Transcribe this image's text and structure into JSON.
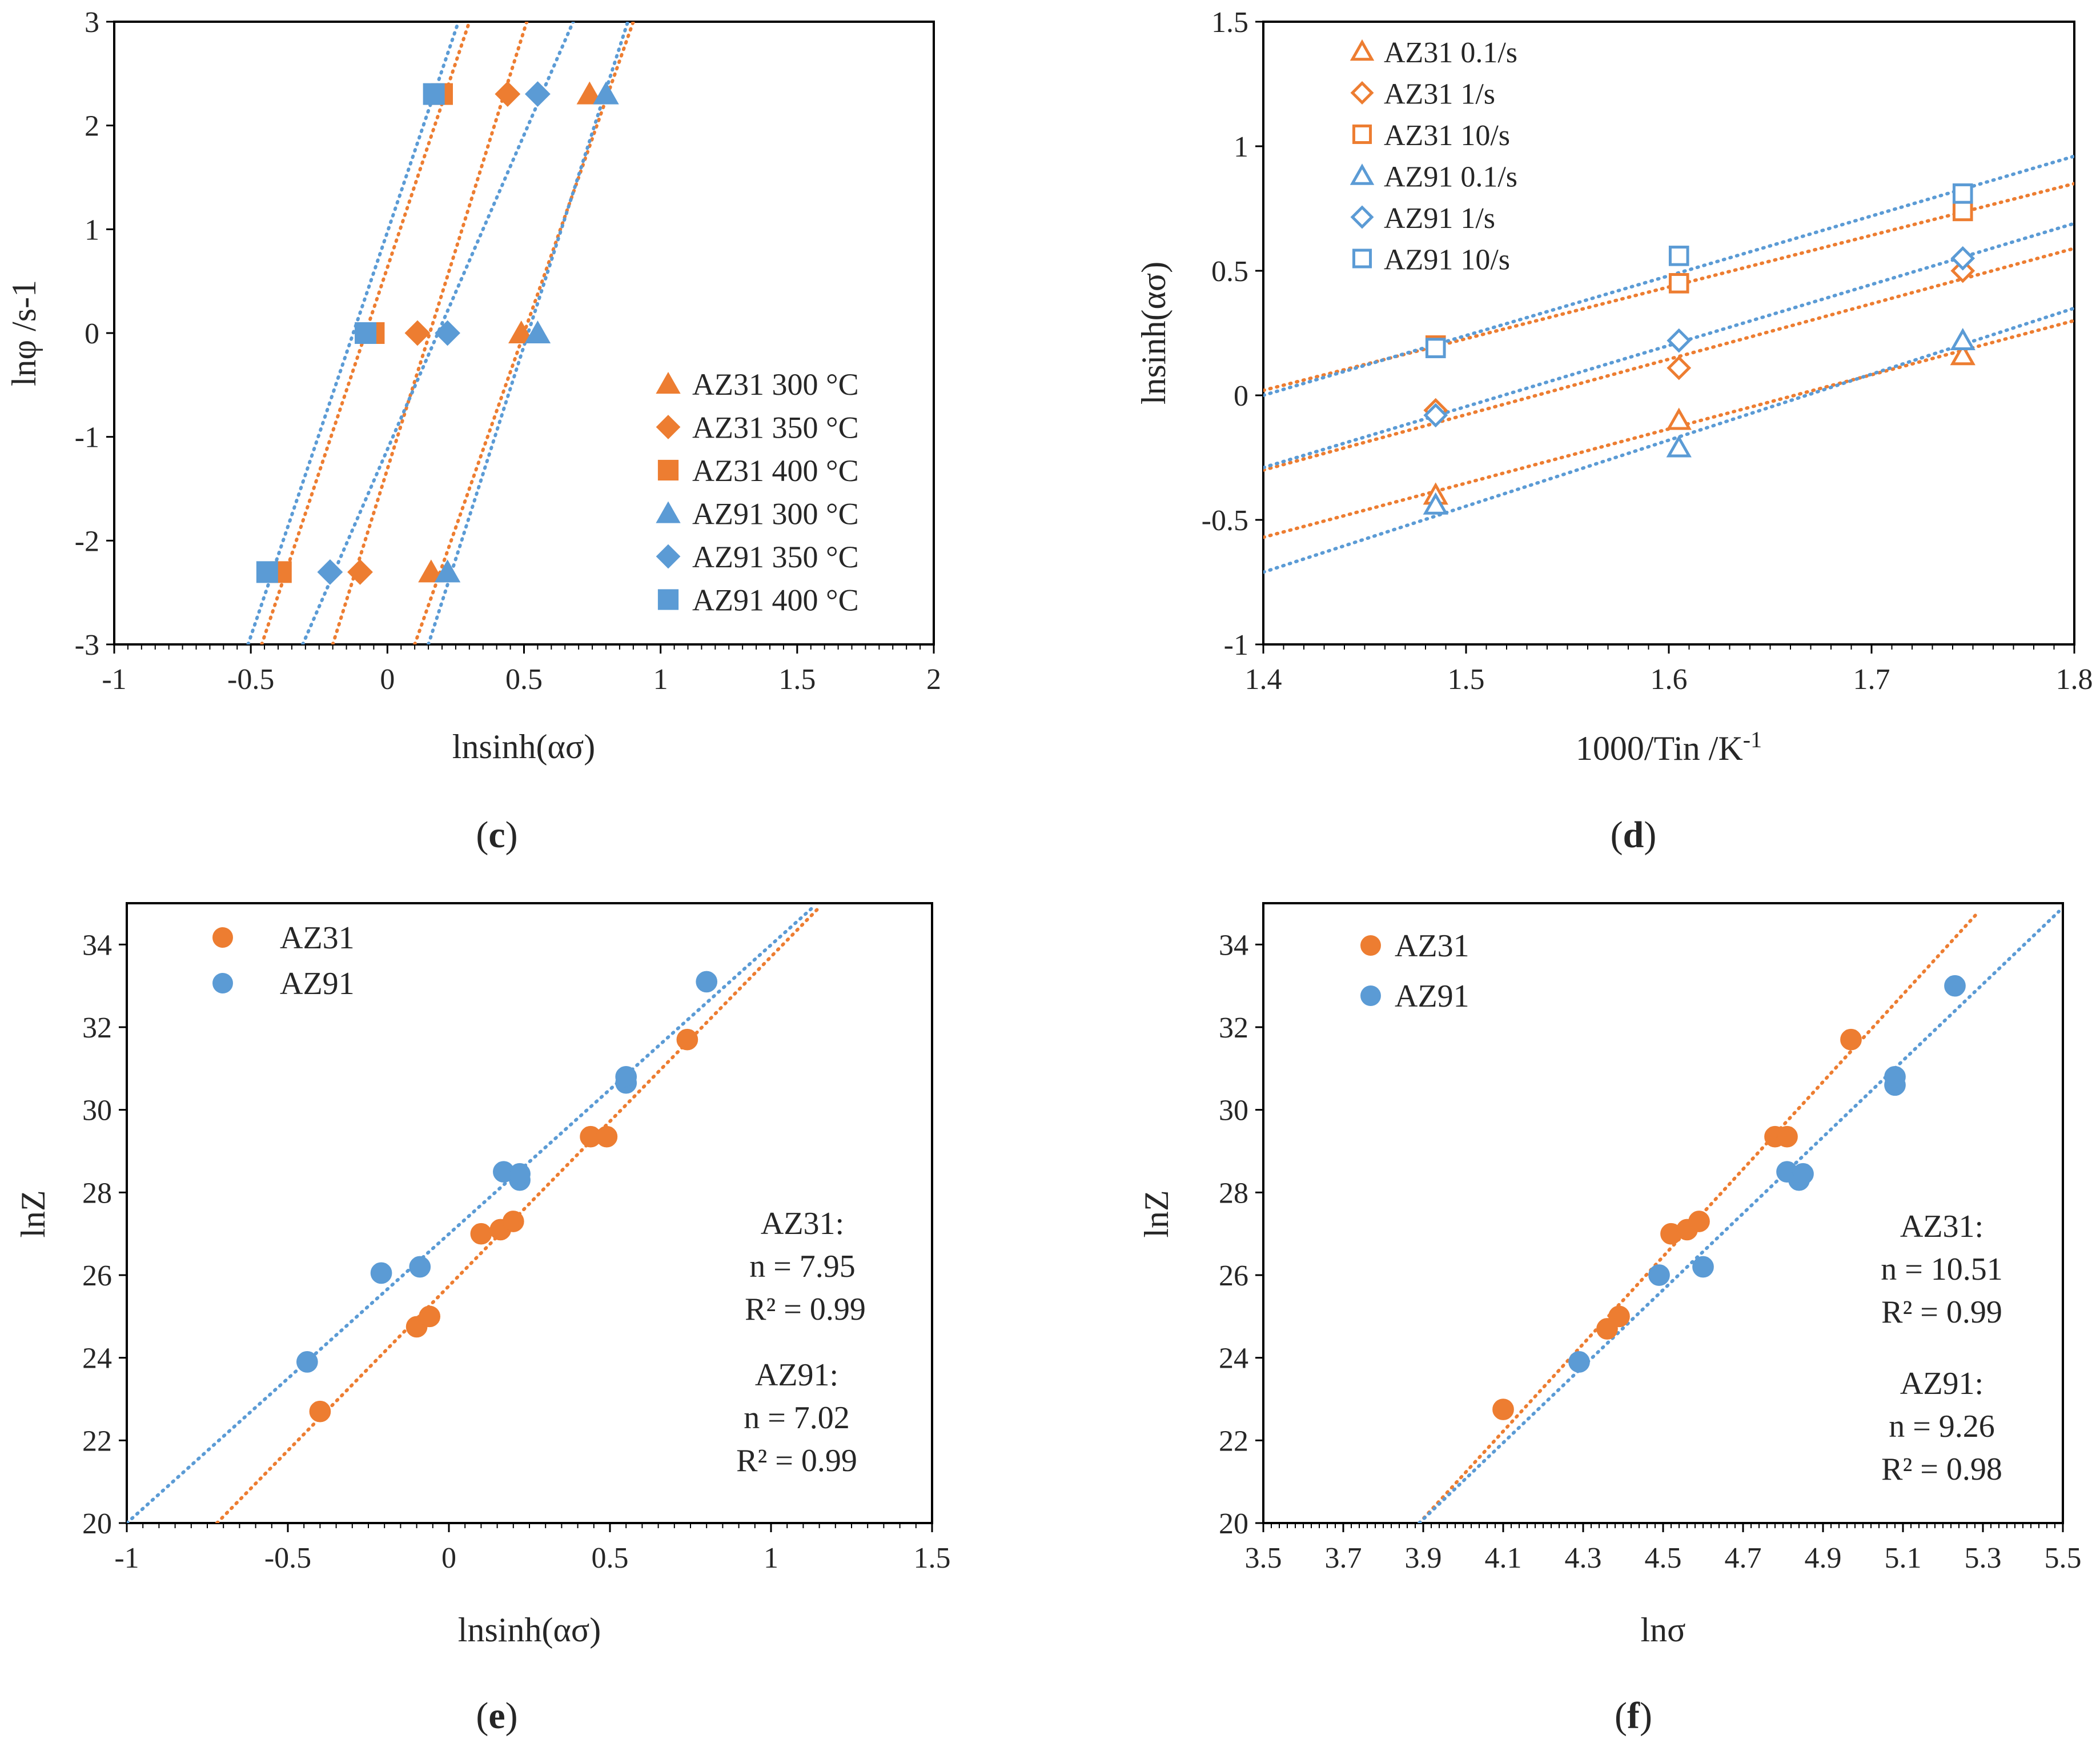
{
  "colors": {
    "orange": "#ED7D31",
    "blue": "#5B9BD5",
    "frame": "#000000",
    "text": "#262626"
  },
  "panels": [
    {
      "caption_letter": "c"
    },
    {
      "caption_letter": "d"
    },
    {
      "caption_letter": "e"
    },
    {
      "caption_letter": "f"
    }
  ],
  "chart_data": [
    {
      "id": "c",
      "type": "scatter",
      "title": "",
      "xlabel": "lnsinh(ασ)",
      "ylabel": "lnφ /s-1",
      "xlim": [
        -1,
        2
      ],
      "ylim": [
        -3,
        3
      ],
      "xticks": [
        -1,
        -0.5,
        0,
        0.5,
        1,
        1.5,
        2
      ],
      "yticks": [
        -3,
        -2,
        -1,
        0,
        1,
        2,
        3
      ],
      "xtick_labels": [
        "-1",
        "-0.5",
        "0",
        "0.5",
        "1",
        "1.5",
        "2"
      ],
      "ytick_labels": [
        "-3",
        "-2",
        "-1",
        "0",
        "1",
        "2",
        "3"
      ],
      "legend_position": "bottom-right",
      "series": [
        {
          "name": "AZ31 300 °C",
          "color": "#ED7D31",
          "marker": "triangle",
          "filled": true,
          "x": [
            0.16,
            0.49,
            0.74
          ],
          "y": [
            -2.303,
            0,
            2.303
          ],
          "trend": [
            [
              0.1,
              -3
            ],
            [
              0.9,
              3
            ]
          ]
        },
        {
          "name": "AZ31 350 °C",
          "color": "#ED7D31",
          "marker": "diamond",
          "filled": true,
          "x": [
            -0.1,
            0.11,
            0.44
          ],
          "y": [
            -2.303,
            0,
            2.303
          ],
          "trend": [
            [
              -0.2,
              -3
            ],
            [
              0.51,
              3
            ]
          ]
        },
        {
          "name": "AZ31 400 °C",
          "color": "#ED7D31",
          "marker": "square",
          "filled": true,
          "x": [
            -0.39,
            -0.05,
            0.2
          ],
          "y": [
            -2.303,
            0,
            2.303
          ],
          "trend": [
            [
              -0.46,
              -3
            ],
            [
              0.3,
              3
            ]
          ]
        },
        {
          "name": "AZ91 300 °C",
          "color": "#5B9BD5",
          "marker": "triangle",
          "filled": true,
          "x": [
            0.22,
            0.55,
            0.8
          ],
          "y": [
            -2.303,
            0,
            2.303
          ],
          "trend": [
            [
              0.15,
              -3
            ],
            [
              0.88,
              3
            ]
          ]
        },
        {
          "name": "AZ91 350 °C",
          "color": "#5B9BD5",
          "marker": "diamond",
          "filled": true,
          "x": [
            -0.21,
            0.22,
            0.55
          ],
          "y": [
            -2.303,
            0,
            2.303
          ],
          "trend": [
            [
              -0.31,
              -3
            ],
            [
              0.68,
              3
            ]
          ]
        },
        {
          "name": "AZ91 400 °C",
          "color": "#5B9BD5",
          "marker": "square",
          "filled": true,
          "x": [
            -0.44,
            -0.08,
            0.17
          ],
          "y": [
            -2.303,
            0,
            2.303
          ],
          "trend": [
            [
              -0.51,
              -3
            ],
            [
              0.26,
              3
            ]
          ]
        }
      ]
    },
    {
      "id": "d",
      "type": "scatter",
      "title": "",
      "xlabel": "1000/Tin /K",
      "xlabel_sup": "-1",
      "ylabel": "lnsinh(ασ)",
      "xlim": [
        1.4,
        1.8
      ],
      "ylim": [
        -1,
        1.5
      ],
      "xticks": [
        1.4,
        1.5,
        1.6,
        1.7,
        1.8
      ],
      "yticks": [
        -1,
        -0.5,
        0,
        0.5,
        1,
        1.5
      ],
      "xtick_labels": [
        "1.4",
        "1.5",
        "1.6",
        "1.7",
        "1.8"
      ],
      "ytick_labels": [
        "-1",
        "-0.5",
        "0",
        "0.5",
        "1",
        "1.5"
      ],
      "legend_position": "top-left",
      "series": [
        {
          "name": "AZ31 0.1/s",
          "color": "#ED7D31",
          "marker": "triangle",
          "filled": false,
          "x": [
            1.485,
            1.605,
            1.745
          ],
          "y": [
            -0.4,
            -0.1,
            0.16
          ],
          "trend": [
            [
              1.4,
              -0.57
            ],
            [
              1.8,
              0.3
            ]
          ]
        },
        {
          "name": "AZ31 1/s",
          "color": "#ED7D31",
          "marker": "diamond",
          "filled": false,
          "x": [
            1.485,
            1.605,
            1.745
          ],
          "y": [
            -0.06,
            0.11,
            0.5
          ],
          "trend": [
            [
              1.4,
              -0.3
            ],
            [
              1.8,
              0.59
            ]
          ]
        },
        {
          "name": "AZ31 10/s",
          "color": "#ED7D31",
          "marker": "square",
          "filled": false,
          "x": [
            1.485,
            1.605,
            1.745
          ],
          "y": [
            0.2,
            0.45,
            0.74
          ],
          "trend": [
            [
              1.4,
              0.02
            ],
            [
              1.8,
              0.85
            ]
          ]
        },
        {
          "name": "AZ91 0.1/s",
          "color": "#5B9BD5",
          "marker": "triangle",
          "filled": false,
          "x": [
            1.485,
            1.605,
            1.745
          ],
          "y": [
            -0.44,
            -0.21,
            0.22
          ],
          "trend": [
            [
              1.4,
              -0.71
            ],
            [
              1.8,
              0.35
            ]
          ]
        },
        {
          "name": "AZ91 1/s",
          "color": "#5B9BD5",
          "marker": "diamond",
          "filled": false,
          "x": [
            1.485,
            1.605,
            1.745
          ],
          "y": [
            -0.08,
            0.22,
            0.55
          ],
          "trend": [
            [
              1.4,
              -0.29
            ],
            [
              1.8,
              0.69
            ]
          ]
        },
        {
          "name": "AZ91 10/s",
          "color": "#5B9BD5",
          "marker": "square",
          "filled": false,
          "x": [
            1.485,
            1.605,
            1.745
          ],
          "y": [
            0.19,
            0.56,
            0.81
          ],
          "trend": [
            [
              1.4,
              0
            ],
            [
              1.8,
              0.96
            ]
          ]
        }
      ]
    },
    {
      "id": "e",
      "type": "scatter",
      "title": "",
      "xlabel": "lnsinh(ασ)",
      "ylabel": "lnZ",
      "xlim": [
        -1,
        1.5
      ],
      "ylim": [
        20,
        35
      ],
      "xticks": [
        -1,
        -0.5,
        0,
        0.5,
        1,
        1.5
      ],
      "yticks": [
        20,
        22,
        24,
        26,
        28,
        30,
        32,
        34
      ],
      "xtick_labels": [
        "-1",
        "-0.5",
        "0",
        "0.5",
        "1",
        "1.5"
      ],
      "ytick_labels": [
        "20",
        "22",
        "24",
        "26",
        "28",
        "30",
        "32",
        "34"
      ],
      "legend_position": "top-left",
      "annotations": {
        "az31_title": "AZ31:",
        "az31_n": "n = 7.95",
        "az31_r2": "R² = 0.99",
        "az91_title": "AZ91:",
        "az91_n": "n = 7.02",
        "az91_r2": "R² = 0.99"
      },
      "series": [
        {
          "name": "AZ31",
          "color": "#ED7D31",
          "marker": "circle",
          "filled": true,
          "x": [
            -0.4,
            -0.1,
            -0.06,
            0.1,
            0.16,
            0.2,
            0.44,
            0.49,
            0.74
          ],
          "y": [
            22.7,
            24.75,
            25.0,
            27.0,
            27.1,
            27.3,
            29.35,
            29.35,
            31.7
          ],
          "trend": [
            [
              -0.72,
              20
            ],
            [
              1.15,
              34.9
            ]
          ]
        },
        {
          "name": "AZ91",
          "color": "#5B9BD5",
          "marker": "circle",
          "filled": true,
          "x": [
            -0.44,
            -0.21,
            -0.09,
            0.17,
            0.22,
            0.22,
            0.55,
            0.55,
            0.8
          ],
          "y": [
            23.9,
            26.05,
            26.2,
            28.5,
            28.3,
            28.45,
            30.65,
            30.8,
            33.1
          ],
          "trend": [
            [
              -1.0,
              20
            ],
            [
              1.13,
              34.9
            ]
          ]
        }
      ]
    },
    {
      "id": "f",
      "type": "scatter",
      "title": "",
      "xlabel": "lnσ",
      "ylabel": "lnZ",
      "xlim": [
        3.5,
        5.5
      ],
      "ylim": [
        20,
        35
      ],
      "xticks": [
        3.5,
        3.7,
        3.9,
        4.1,
        4.3,
        4.5,
        4.7,
        4.9,
        5.1,
        5.3,
        5.5
      ],
      "yticks": [
        20,
        22,
        24,
        26,
        28,
        30,
        32,
        34
      ],
      "xtick_labels": [
        "3.5",
        "3.7",
        "3.9",
        "4.1",
        "4.3",
        "4.5",
        "4.7",
        "4.9",
        "5.1",
        "5.3",
        "5.5"
      ],
      "ytick_labels": [
        "20",
        "22",
        "24",
        "26",
        "28",
        "30",
        "32",
        "34"
      ],
      "legend_position": "top-left",
      "annotations": {
        "az31_title": "AZ31:",
        "az31_n": "n = 10.51",
        "az31_r2": "R² = 0.99",
        "az91_title": "AZ91:",
        "az91_n": "n = 9.26",
        "az91_r2": "R² = 0.98"
      },
      "series": [
        {
          "name": "AZ31",
          "color": "#ED7D31",
          "marker": "circle",
          "filled": true,
          "x": [
            4.1,
            4.36,
            4.39,
            4.52,
            4.56,
            4.59,
            4.78,
            4.81,
            4.97
          ],
          "y": [
            22.75,
            24.7,
            25.0,
            27.0,
            27.1,
            27.3,
            29.35,
            29.35,
            31.7
          ],
          "trend": [
            [
              3.89,
              20
            ],
            [
              5.29,
              34.8
            ]
          ]
        },
        {
          "name": "AZ91",
          "color": "#5B9BD5",
          "marker": "circle",
          "filled": true,
          "x": [
            4.29,
            4.49,
            4.6,
            4.81,
            4.84,
            4.85,
            5.08,
            5.08,
            5.23
          ],
          "y": [
            23.9,
            26.0,
            26.2,
            28.5,
            28.3,
            28.45,
            30.6,
            30.8,
            33.0
          ],
          "trend": [
            [
              3.89,
              20
            ],
            [
              5.49,
              34.8
            ]
          ]
        }
      ]
    }
  ]
}
